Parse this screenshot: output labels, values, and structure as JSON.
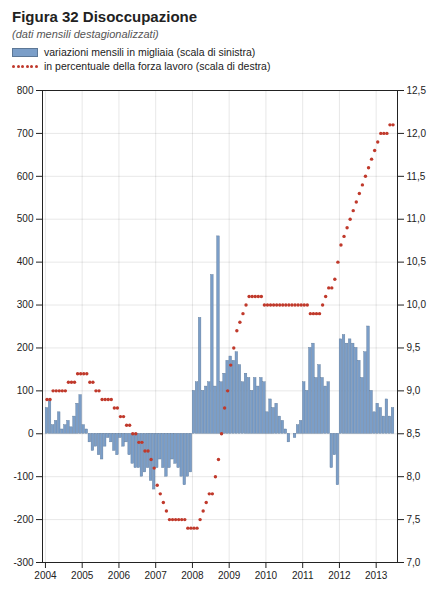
{
  "chart_data": {
    "type": "bar",
    "title": "Figura 32  Disoccupazione",
    "subtitle": "(dati mensili destagionalizzati)",
    "x": [
      2004.041667,
      2004.125,
      2004.208333,
      2004.291667,
      2004.375,
      2004.458333,
      2004.541667,
      2004.625,
      2004.708333,
      2004.791667,
      2004.875,
      2004.958333,
      2005.041667,
      2005.125,
      2005.208333,
      2005.291667,
      2005.375,
      2005.458333,
      2005.541667,
      2005.625,
      2005.708333,
      2005.791667,
      2005.875,
      2005.958333,
      2006.041667,
      2006.125,
      2006.208333,
      2006.291667,
      2006.375,
      2006.458333,
      2006.541667,
      2006.625,
      2006.708333,
      2006.791667,
      2006.875,
      2006.958333,
      2007.041667,
      2007.125,
      2007.208333,
      2007.291667,
      2007.375,
      2007.458333,
      2007.541667,
      2007.625,
      2007.708333,
      2007.791667,
      2007.875,
      2007.958333,
      2008.041667,
      2008.125,
      2008.208333,
      2008.291667,
      2008.375,
      2008.458333,
      2008.541667,
      2008.625,
      2008.708333,
      2008.791667,
      2008.875,
      2008.958333,
      2009.041667,
      2009.125,
      2009.208333,
      2009.291667,
      2009.375,
      2009.458333,
      2009.541667,
      2009.625,
      2009.708333,
      2009.791667,
      2009.875,
      2009.958333,
      2010.041667,
      2010.125,
      2010.208333,
      2010.291667,
      2010.375,
      2010.458333,
      2010.541667,
      2010.625,
      2010.708333,
      2010.791667,
      2010.875,
      2010.958333,
      2011.041667,
      2011.125,
      2011.208333,
      2011.291667,
      2011.375,
      2011.458333,
      2011.541667,
      2011.625,
      2011.708333,
      2011.791667,
      2011.875,
      2011.958333,
      2012.041667,
      2012.125,
      2012.208333,
      2012.291667,
      2012.375,
      2012.458333,
      2012.541667,
      2012.625,
      2012.708333,
      2012.791667,
      2012.875,
      2012.958333,
      2013.041667,
      2013.125,
      2013.208333,
      2013.291667,
      2013.375,
      2013.458333
    ],
    "series": [
      {
        "name": "variazioni mensili in migliaia (scala di sinistra)",
        "type": "bar",
        "color": "#7B9EC8",
        "values": [
          60,
          80,
          20,
          30,
          50,
          10,
          20,
          30,
          15,
          40,
          70,
          90,
          20,
          10,
          -20,
          -40,
          -30,
          -50,
          -60,
          -30,
          -10,
          -20,
          -40,
          -50,
          -10,
          -30,
          -20,
          -50,
          -70,
          -80,
          -80,
          -100,
          -90,
          -80,
          -110,
          -130,
          -80,
          -60,
          -80,
          -100,
          -80,
          -60,
          -70,
          -80,
          -100,
          -120,
          -100,
          -90,
          100,
          120,
          270,
          100,
          110,
          120,
          370,
          110,
          460,
          120,
          140,
          170,
          180,
          170,
          190,
          160,
          120,
          140,
          130,
          100,
          130,
          110,
          130,
          120,
          50,
          80,
          60,
          70,
          40,
          30,
          10,
          -20,
          0,
          -10,
          20,
          30,
          120,
          100,
          200,
          210,
          130,
          160,
          130,
          110,
          120,
          -80,
          -50,
          -120,
          220,
          230,
          210,
          220,
          210,
          200,
          170,
          130,
          190,
          250,
          100,
          50,
          70,
          60,
          40,
          80,
          40,
          60
        ]
      },
      {
        "name": "in percentuale della forza lavoro (scala di destra)",
        "type": "scatter",
        "marker": "circle",
        "color": "#C0392B",
        "axis": "y2",
        "values": [
          8.9,
          8.9,
          9.0,
          9.0,
          9.0,
          9.0,
          9.0,
          9.1,
          9.1,
          9.1,
          9.2,
          9.2,
          9.2,
          9.2,
          9.1,
          9.1,
          9.0,
          9.0,
          8.9,
          8.9,
          8.9,
          8.9,
          8.8,
          8.8,
          8.7,
          8.7,
          8.6,
          8.6,
          8.5,
          8.5,
          8.4,
          8.4,
          8.3,
          8.3,
          8.2,
          8.1,
          7.9,
          7.8,
          7.7,
          7.6,
          7.5,
          7.5,
          7.5,
          7.5,
          7.5,
          7.5,
          7.4,
          7.4,
          7.4,
          7.4,
          7.5,
          7.6,
          7.7,
          7.8,
          7.8,
          8.0,
          8.2,
          8.5,
          8.8,
          9.0,
          9.3,
          9.5,
          9.7,
          9.8,
          9.9,
          10.0,
          10.1,
          10.1,
          10.1,
          10.1,
          10.1,
          10.0,
          10.0,
          10.0,
          10.0,
          10.0,
          10.0,
          10.0,
          10.0,
          10.0,
          10.0,
          10.0,
          10.0,
          10.0,
          10.0,
          10.0,
          9.9,
          9.9,
          9.9,
          9.9,
          10.0,
          10.1,
          10.2,
          10.2,
          10.3,
          10.5,
          10.7,
          10.8,
          10.9,
          11.0,
          11.1,
          11.2,
          11.3,
          11.4,
          11.5,
          11.6,
          11.7,
          11.8,
          11.9,
          12.0,
          12.0,
          12.0,
          12.1,
          12.1
        ]
      }
    ],
    "xlim": [
      2003.92,
      2013.58
    ],
    "xticks": [
      2004,
      2005,
      2006,
      2007,
      2008,
      2009,
      2010,
      2011,
      2012,
      2013
    ],
    "ylim": [
      -300,
      800
    ],
    "yticks": [
      -300,
      -200,
      -100,
      0,
      100,
      200,
      300,
      400,
      500,
      600,
      700,
      800
    ],
    "y2lim": [
      7.0,
      12.5
    ],
    "y2ticks": [
      {
        "value": 7.0,
        "label": "7,0"
      },
      {
        "value": 7.5,
        "label": "7,5"
      },
      {
        "value": 8.0,
        "label": "8,0"
      },
      {
        "value": 8.5,
        "label": "8,5"
      },
      {
        "value": 9.0,
        "label": "9,0"
      },
      {
        "value": 9.5,
        "label": "9,5"
      },
      {
        "value": 10.0,
        "label": "10,0"
      },
      {
        "value": 10.5,
        "label": "10,5"
      },
      {
        "value": 11.0,
        "label": "11,0"
      },
      {
        "value": 11.5,
        "label": "11,5"
      },
      {
        "value": 12.0,
        "label": "12,0"
      },
      {
        "value": 12.5,
        "label": "12,5"
      }
    ],
    "grid": true
  }
}
